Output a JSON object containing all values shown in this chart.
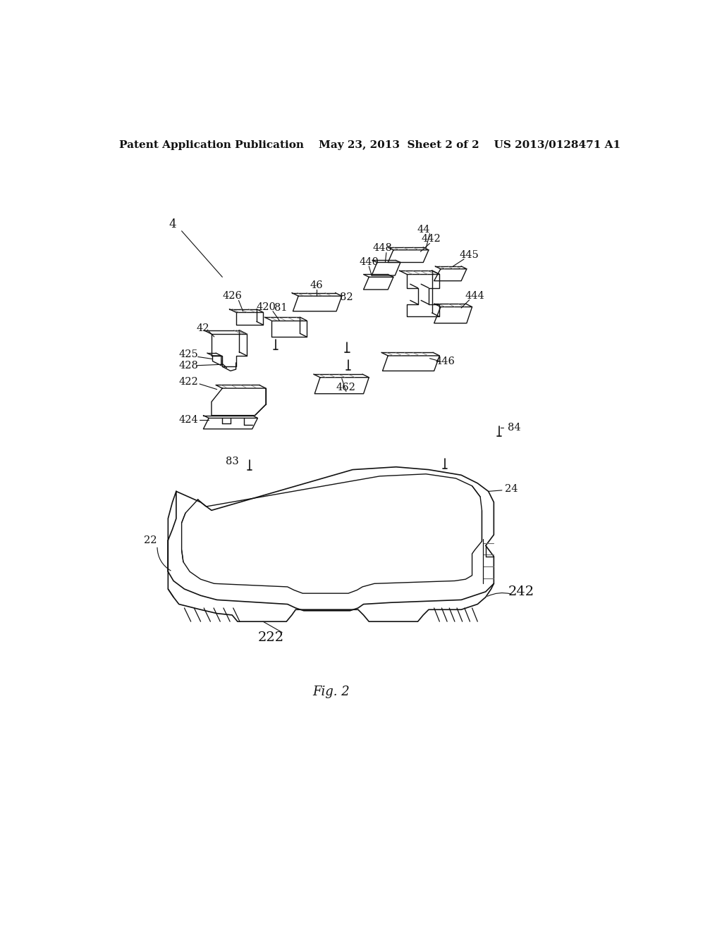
{
  "background_color": "#ffffff",
  "header_text": "Patent Application Publication    May 23, 2013  Sheet 2 of 2    US 2013/0128471 A1",
  "fig_label": "Fig. 2",
  "title_fontsize": 11,
  "label_fontsize": 10.5,
  "fig_label_fontsize": 13,
  "dark": "#111111",
  "gray": "#666666"
}
